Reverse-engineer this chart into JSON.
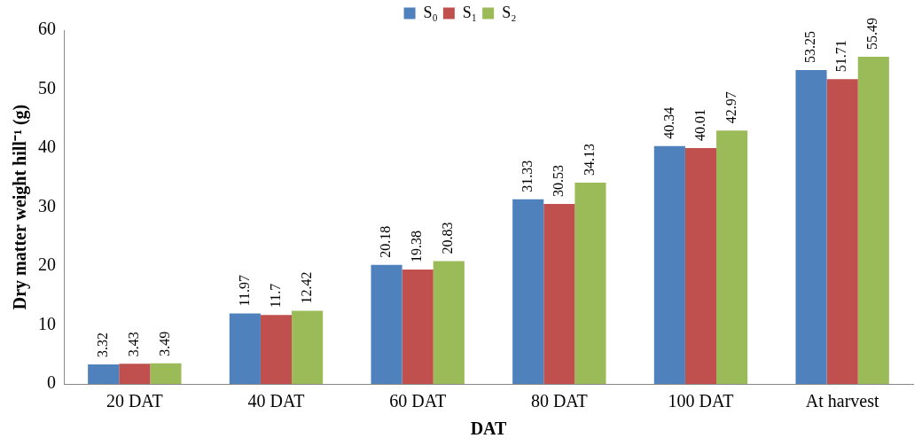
{
  "chart_data": {
    "type": "bar",
    "xlabel": "DAT",
    "ylabel": "Dry matter weight hill⁻¹ (g)",
    "categories": [
      "20 DAT",
      "40 DAT",
      "60 DAT",
      "80 DAT",
      "100 DAT",
      "At harvest"
    ],
    "series": [
      {
        "name": "S₀",
        "color": "#4f81bd",
        "values": [
          3.32,
          11.97,
          20.18,
          31.33,
          40.34,
          53.25
        ]
      },
      {
        "name": "S₁",
        "color": "#c0504d",
        "values": [
          3.43,
          11.7,
          19.38,
          30.53,
          40.01,
          51.71
        ]
      },
      {
        "name": "S₂",
        "color": "#9bbb59",
        "values": [
          3.49,
          12.42,
          20.83,
          34.13,
          42.97,
          55.49
        ]
      }
    ],
    "ylim": [
      0,
      60
    ],
    "yticks": [
      0,
      10,
      20,
      30,
      40,
      50,
      60
    ],
    "grid": false,
    "legend": "top",
    "data_labels": true
  }
}
